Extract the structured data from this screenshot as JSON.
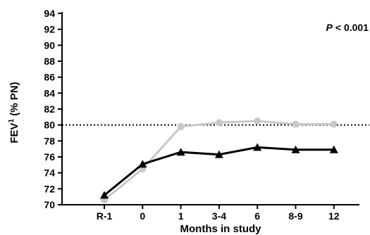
{
  "chart_data": {
    "type": "line",
    "categories": [
      "R-1",
      "0",
      "1",
      "3-4",
      "6",
      "8-9",
      "12"
    ],
    "series": [
      {
        "color": "#c8c8c8",
        "marker": "circle",
        "values": [
          70.6,
          74.5,
          79.8,
          80.3,
          80.5,
          80.1,
          80.1
        ]
      },
      {
        "color": "#000000",
        "marker": "triangle",
        "values": [
          71.2,
          75.1,
          76.6,
          76.3,
          77.2,
          76.9,
          76.9
        ]
      }
    ],
    "xlabel": "Months in study",
    "ylabel_main": "FEV",
    "ylabel_sup": "1",
    "ylabel_rest": " (% PN)",
    "ylim": [
      70,
      94
    ],
    "yticks": [
      70,
      72,
      74,
      76,
      78,
      80,
      82,
      84,
      86,
      88,
      90,
      92,
      94
    ],
    "reference_line": {
      "y": 80,
      "style": "dotted"
    },
    "annotation_italic": "P",
    "annotation_rest": " < 0.001",
    "grid": false
  }
}
